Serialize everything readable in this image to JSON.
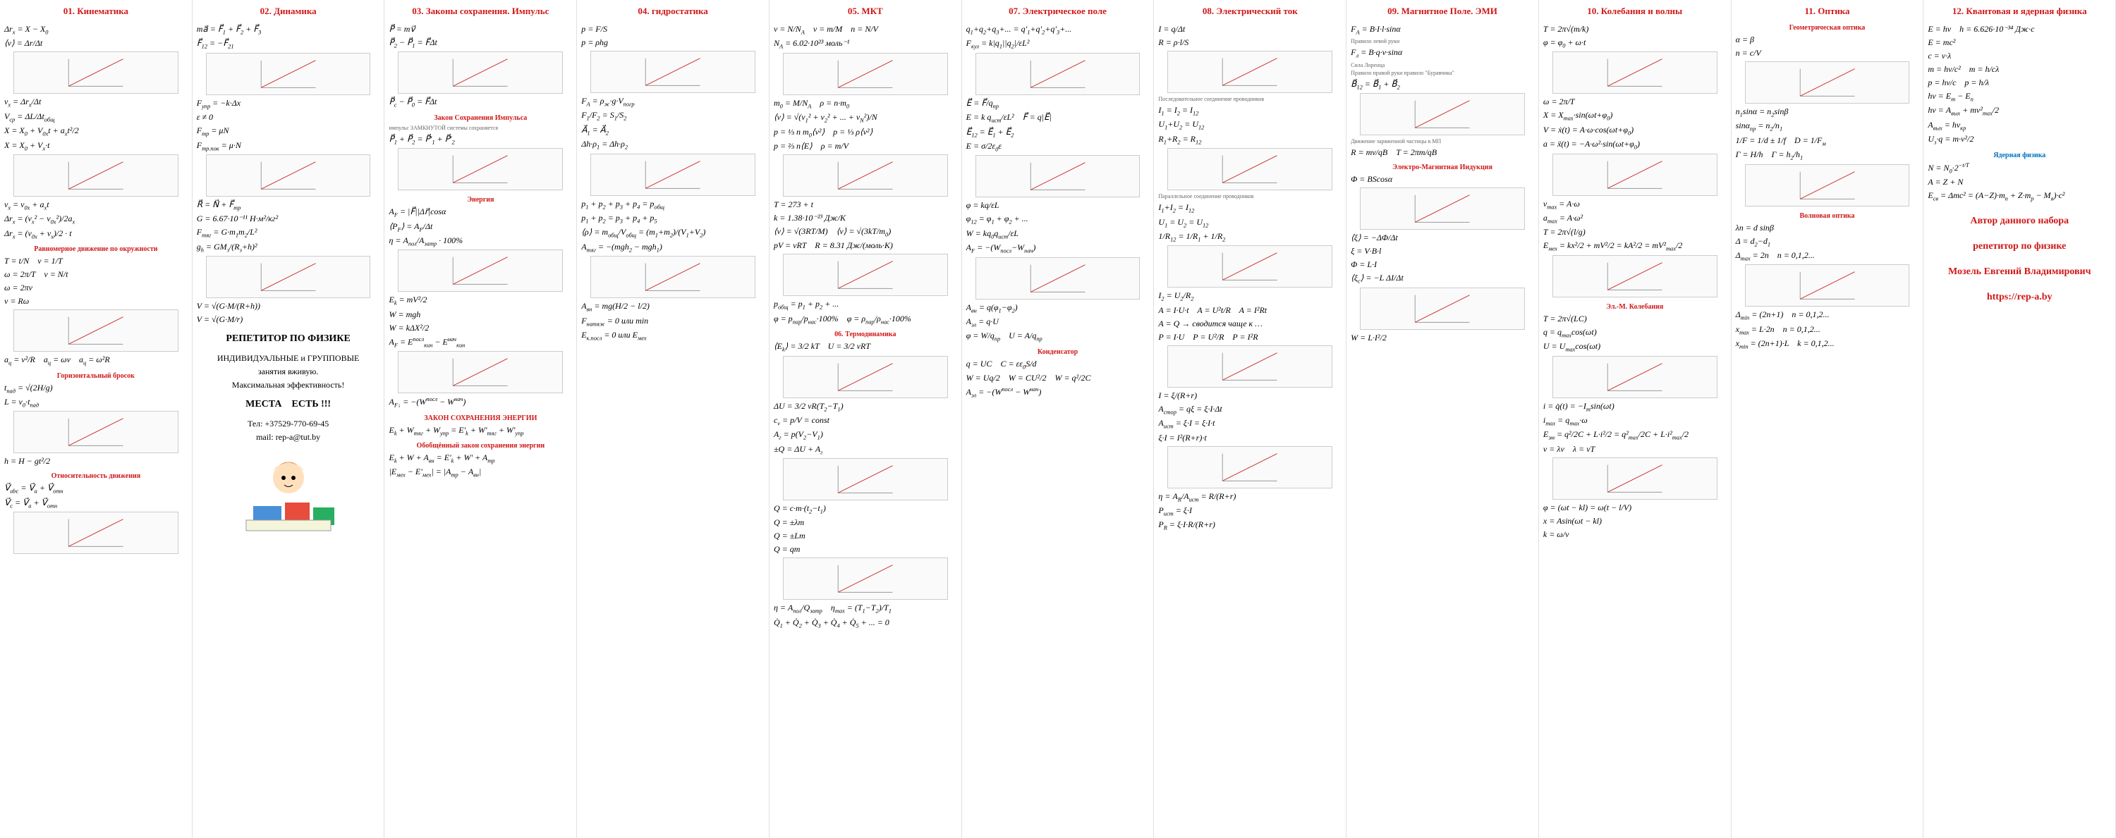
{
  "columns": [
    {
      "header": "01. Кинематика",
      "items": [
        {
          "f": "Δr<sub>x</sub> = X − X<sub>0</sub>"
        },
        {
          "f": "⟨v⟩ = Δr/Δt"
        },
        {
          "f": "v<sub>x</sub> = Δr<sub>x</sub>/Δt"
        },
        {
          "f": "V<sub>ср</sub> = ΔL/Δt<sub>общ</sub>"
        },
        {
          "f": "X = X<sub>0</sub> + V<sub>0x</sub>t + a<sub>x</sub>t²/2"
        },
        {
          "f": "X = X<sub>0</sub> + V<sub>x</sub>·t"
        },
        {
          "f": "v<sub>x</sub> = v<sub>0x</sub> + a<sub>x</sub>t"
        },
        {
          "f": "Δr<sub>x</sub> = (v<sub>x</sub>² − v<sub>0x</sub>²)/2a<sub>x</sub>"
        },
        {
          "f": "Δr<sub>x</sub> = (v<sub>0x</sub> + v<sub>x</sub>)/2 · t"
        },
        {
          "sub": "Равномерное движение по окружности"
        },
        {
          "f": "T = t/N &nbsp;&nbsp; ν = 1/T"
        },
        {
          "f": "ω = 2π/T &nbsp;&nbsp; ν = N/t"
        },
        {
          "f": "ω = 2πν"
        },
        {
          "f": "v = Rω"
        },
        {
          "f": "a<sub>ц</sub> = v²/R &nbsp;&nbsp; a<sub>ц</sub> = ωv &nbsp;&nbsp; a<sub>ц</sub> = ω²R"
        },
        {
          "sub": "Горизонтальный бросок"
        },
        {
          "f": "t<sub>пад</sub> = √(2H/g)"
        },
        {
          "f": "L = v<sub>0</sub>·t<sub>пад</sub>"
        },
        {
          "f": "h = H − gt²/2"
        },
        {
          "sub": "Относительность движения"
        },
        {
          "f": "V⃗<sub>abc</sub> = V⃗<sub>a</sub> + V⃗<sub>отн</sub>"
        },
        {
          "f": "V⃗<sub>c</sub> = V⃗<sub>a</sub> + V⃗<sub>отн</sub>"
        }
      ]
    },
    {
      "header": "02. Динамика",
      "items": [
        {
          "f": "ma⃗ = F⃗<sub>1</sub> + F⃗<sub>2</sub> + F⃗<sub>3</sub>"
        },
        {
          "f": "F⃗<sub>12</sub> = −F⃗<sub>21</sub>"
        },
        {
          "f": "F<sub>упр</sub> = −k·Δx"
        },
        {
          "f": "ε ≠ 0"
        },
        {
          "f": "F<sub>тр</sub> = μN"
        },
        {
          "f": "F<sub>тр.пок</sub> = μ·N"
        },
        {
          "f": "R⃗ = N⃗ + F⃗<sub>тр</sub>"
        },
        {
          "f": "G = 6.67·10⁻¹¹ Н·м²/кг²"
        },
        {
          "f": "F<sub>тяг</sub> = G·m<sub>1</sub>m<sub>2</sub>/L²"
        },
        {
          "f": "g<sub>h</sub> = GM<sub>з</sub>/(R<sub>з</sub>+h)²"
        },
        {
          "f": "V = √(G·M/(R+h))"
        },
        {
          "f": "V = √(G·M/r)"
        },
        {
          "promo": "РЕПЕТИТОР ПО ФИЗИКЕ"
        },
        {
          "promo_sub": "ИНДИВИДУАЛЬНЫЕ и ГРУППОВЫЕ"
        },
        {
          "promo_sub": "занятия вживую."
        },
        {
          "promo_sub": "Максимальная эффективность!"
        },
        {
          "promo": "МЕСТА &nbsp;&nbsp; ЕСТЬ !!!"
        },
        {
          "promo_sub": "Тел: +37529-770-69-45"
        },
        {
          "promo_sub": "mail: rep-a@tut.by"
        }
      ]
    },
    {
      "header": "03. Законы сохранения. Импульс",
      "items": [
        {
          "f": "P⃗ = mv⃗"
        },
        {
          "f": "P⃗<sub>2</sub> − P⃗<sub>1</sub> = F⃗Δt"
        },
        {
          "f": "P⃗<sub>c</sub> − P⃗<sub>0</sub> = F⃗Δt"
        },
        {
          "sub": "Закон Сохранения Импульса"
        },
        {
          "note": "импульс ЗАМКНУТОЙ системы сохраняется"
        },
        {
          "f": "P⃗<sub>1</sub> + P⃗<sub>2</sub> = P⃗'<sub>1</sub> + P⃗'<sub>2</sub>"
        },
        {
          "sub": "Энергия"
        },
        {
          "f": "A<sub>F</sub> = |F⃗||Δr⃗|cosα"
        },
        {
          "f": "⟨P<sub>F</sub>⟩ = A<sub>F</sub>/Δt"
        },
        {
          "f": "η = A<sub>пол</sub>/A<sub>затр</sub> · 100%"
        },
        {
          "f": "E<sub>k</sub> = mV²/2"
        },
        {
          "f": "W = mgh"
        },
        {
          "f": "W = kΔX²/2"
        },
        {
          "f": "A<sub>F</sub> = E<sup>посл</sup><sub>кин</sub> − E<sup>нач</sup><sub>кин</sub>"
        },
        {
          "f": "A<sub>F↓</sub> = −(W<sup>посл</sup> − W<sup>нач</sup>)"
        },
        {
          "sub": "ЗАКОН СОХРАНЕНИЯ ЭНЕРГИИ"
        },
        {
          "f": "E<sub>k</sub> + W<sub>тяг</sub> + W<sub>упр</sub> = E'<sub>k</sub> + W'<sub>тяг</sub> + W'<sub>упр</sub>"
        },
        {
          "sub": "Обобщённый закон сохранения энергии"
        },
        {
          "f": "E<sub>k</sub> + W + A<sub>вн</sub> = E'<sub>k</sub> + W' + A<sub>тр</sub>"
        },
        {
          "f": "|E<sub>мех</sub> − E'<sub>мех</sub>| = |A<sub>тр</sub> − A<sub>вн</sub>|"
        }
      ]
    },
    {
      "header": "04. гидростатика",
      "items": [
        {
          "f": "p = F/S"
        },
        {
          "f": "p = ρhg"
        },
        {
          "f": "F<sub>A</sub> = ρ<sub>ж</sub>·g·V<sub>погр</sub>"
        },
        {
          "f": "F<sub>1</sub>/F<sub>2</sub> = S<sub>1</sub>/S<sub>2</sub>"
        },
        {
          "f": "A⃗<sub>1</sub> = A⃗<sub>2</sub>"
        },
        {
          "f": "Δh·ρ<sub>1</sub> = Δh·ρ<sub>2</sub>"
        },
        {
          "f": "p<sub>1</sub> + p<sub>2</sub> + p<sub>3</sub> + p<sub>4</sub> = p<sub>общ</sub>"
        },
        {
          "f": "p<sub>1</sub> + p<sub>2</sub> = p<sub>3</sub> + p<sub>4</sub> + p<sub>5</sub>"
        },
        {
          "f": "⟨ρ⟩ = m<sub>общ</sub>/V<sub>общ</sub> = (m<sub>1</sub>+m<sub>2</sub>)/(V<sub>1</sub>+V<sub>2</sub>)"
        },
        {
          "f": "A<sub>тяг</sub> = −(mgh<sub>2</sub> − mgh<sub>1</sub>)"
        },
        {
          "f": "A<sub>вн</sub> = mg(H/2 − l/2)"
        },
        {
          "f": "F<sub>натяж</sub> = 0 или min"
        },
        {
          "f": "E<sub>к.посл</sub> = 0 или E<sub>мех</sub>"
        }
      ]
    },
    {
      "header": "05. МКТ",
      "items": [
        {
          "f": "ν = N/N<sub>A</sub> &nbsp;&nbsp; ν = m/M &nbsp;&nbsp; n = N/V"
        },
        {
          "f": "N<sub>A</sub> = 6.02·10²³ моль⁻¹"
        },
        {
          "f": "m<sub>0</sub> = M/N<sub>A</sub> &nbsp;&nbsp; ρ = n·m<sub>0</sub>"
        },
        {
          "f": "⟨v⟩ = √(v<sub>1</sub>² + v<sub>2</sub>² + ... + v<sub>N</sub>²)/N"
        },
        {
          "f": "p = ⅓ n m<sub>0</sub>⟨v²⟩ &nbsp;&nbsp; p = ⅓ ρ⟨v²⟩"
        },
        {
          "f": "p = ⅔ n⟨E⟩ &nbsp;&nbsp; ρ = m/V"
        },
        {
          "f": "T = 273 + t"
        },
        {
          "f": "k = 1.38·10⁻²³ Дж/К"
        },
        {
          "f": "⟨v⟩ = √(3RT/M) &nbsp;&nbsp; ⟨v⟩ = √(3kT/m<sub>0</sub>)"
        },
        {
          "f": "pV = νRT &nbsp;&nbsp; R = 8.31 Дж/(моль·К)"
        },
        {
          "f": "p<sub>общ</sub> = p<sub>1</sub> + p<sub>2</sub> + ..."
        },
        {
          "f": "φ = p<sub>пар</sub>/p<sub>нас</sub>·100% &nbsp;&nbsp; φ = ρ<sub>пар</sub>/ρ<sub>нас</sub>·100%"
        },
        {
          "sub": "06. Термодинамика"
        },
        {
          "f": "⟨E<sub>k</sub>⟩ = 3/2 kT &nbsp;&nbsp; U = 3/2 νRT"
        },
        {
          "f": "ΔU = 3/2 νR(T<sub>2</sub>−T<sub>1</sub>)"
        },
        {
          "f": "c<sub>v</sub> = p/V = const"
        },
        {
          "f": "A<sub>г</sub> = p(V<sub>2</sub>−V<sub>1</sub>)"
        },
        {
          "f": "±Q = ΔU + A<sub>г</sub>"
        },
        {
          "f": "Q = c·m·(t<sub>2</sub>−t<sub>1</sub>)"
        },
        {
          "f": "Q = ±λm"
        },
        {
          "f": "Q = ±Lm"
        },
        {
          "f": "Q = qm"
        },
        {
          "f": "η = A<sub>пол</sub>/Q<sub>затр</sub> &nbsp;&nbsp; η<sub>max</sub> = (T<sub>1</sub>−T<sub>2</sub>)/T<sub>1</sub>"
        },
        {
          "f": "Q̇<sub>1</sub> + Q̇<sub>2</sub> + Q̇<sub>3</sub> + Q̇<sub>4</sub> + Q̇<sub>5</sub> + ... = 0"
        }
      ]
    },
    {
      "header": "07. Электрическое поле",
      "items": [
        {
          "f": "q<sub>1</sub>+q<sub>2</sub>+q<sub>3</sub>+... = q'<sub>1</sub>+q'<sub>2</sub>+q'<sub>3</sub>+..."
        },
        {
          "f": "F<sub>кул</sub> = k|q<sub>1</sub>||q<sub>2</sub>|/εL²"
        },
        {
          "f": "E⃗ = F⃗/q<sub>пр</sub>"
        },
        {
          "f": "E = k q<sub>ист</sub>/εL² &nbsp;&nbsp; F⃗ = q|E⃗|"
        },
        {
          "f": "E⃗<sub>12</sub> = E⃗<sub>1</sub> + E⃗<sub>2</sub>"
        },
        {
          "f": "E = σ/2ε<sub>0</sub>ε"
        },
        {
          "f": "φ = kq/εL"
        },
        {
          "f": "φ<sub>12</sub> = φ<sub>1</sub> + φ<sub>2</sub> + ..."
        },
        {
          "f": "W = kq<sub>0</sub>q<sub>ист</sub>/εL"
        },
        {
          "f": "A<sub>F</sub> = −(W<sub>посл</sub>−W<sub>нач</sub>)"
        },
        {
          "f": "A<sub>вн</sub> = q(φ<sub>1</sub>−φ<sub>2</sub>)"
        },
        {
          "f": "A<sub>эл</sub> = q·U"
        },
        {
          "f": "φ = W/q<sub>пр</sub> &nbsp;&nbsp; U = A/q<sub>пр</sub>"
        },
        {
          "sub": "Конденсатор"
        },
        {
          "f": "q = UC &nbsp;&nbsp; C = εε<sub>0</sub>S/d"
        },
        {
          "f": "W = Uq/2 &nbsp;&nbsp; W = CU²/2 &nbsp;&nbsp; W = q²/2C"
        },
        {
          "f": "A<sub>эл</sub> = −(W<sup>посл</sup> − W<sup>нач</sup>)"
        }
      ]
    },
    {
      "header": "08. Электрический ток",
      "items": [
        {
          "f": "I = q/Δt"
        },
        {
          "f": "R = ρ·l/S"
        },
        {
          "note": "Последовательное соединение проводников"
        },
        {
          "f": "I<sub>1</sub> = I<sub>2</sub> = I<sub>12</sub>"
        },
        {
          "f": "U<sub>1</sub>+U<sub>2</sub> = U<sub>12</sub>"
        },
        {
          "f": "R<sub>1</sub>+R<sub>2</sub> = R<sub>12</sub>"
        },
        {
          "note": "Параллельное соединение проводников"
        },
        {
          "f": "I<sub>1</sub>+I<sub>2</sub> = I<sub>12</sub>"
        },
        {
          "f": "U<sub>1</sub> = U<sub>2</sub> = U<sub>12</sub>"
        },
        {
          "f": "1/R<sub>12</sub> = 1/R<sub>1</sub> + 1/R<sub>2</sub>"
        },
        {
          "f": "I<sub>2</sub> = U<sub>2</sub>/R<sub>2</sub>"
        },
        {
          "f": "A = I·U·t &nbsp;&nbsp; A = U²t/R &nbsp;&nbsp; A = I²Rt"
        },
        {
          "f": "A = Q → сводится чаще к …"
        },
        {
          "f": "P = I·U &nbsp;&nbsp; P = U²/R &nbsp;&nbsp; P = I²R"
        },
        {
          "f": "I = ξ/(R+r)"
        },
        {
          "f": "A<sub>стор</sub> = qξ = ξ·I·Δt"
        },
        {
          "f": "A<sub>ист</sub> = ξ·I = ξ·I·t"
        },
        {
          "f": "ξ·I = I²(R+r)·t"
        },
        {
          "f": "η = A<sub>R</sub>/A<sub>ист</sub> = R/(R+r)"
        },
        {
          "f": "P<sub>ист</sub> = ξ·I"
        },
        {
          "f": "P<sub>R</sub> = ξ·I·R/(R+r)"
        }
      ]
    },
    {
      "header": "09. Магнитное Поле. ЭМИ",
      "items": [
        {
          "f": "F<sub>A</sub> = B·I·l·sinα"
        },
        {
          "note": "Правило левой руки"
        },
        {
          "f": "F<sub>л</sub> = B·q·v·sinα"
        },
        {
          "note": "Сила Лоренца"
        },
        {
          "note": "Правило правой руки правило \"Буравчика\""
        },
        {
          "f": "B⃗<sub>12</sub> = B⃗<sub>1</sub> + B⃗<sub>2</sub>"
        },
        {
          "note": "Движение заряженной частицы в МП"
        },
        {
          "f": "R = mv/qB &nbsp;&nbsp; T = 2πm/qB"
        },
        {
          "sub": "Электро-Магнитная Индукция"
        },
        {
          "f": "Φ = BScosα"
        },
        {
          "f": "⟨ξ⟩ = −ΔΦ/Δt"
        },
        {
          "f": "ξ = V·B·l"
        },
        {
          "f": "Φ = L·I"
        },
        {
          "f": "⟨ξ<sub>с</sub>⟩ = −L ΔI/Δt"
        },
        {
          "f": "W = L·I²/2"
        }
      ]
    },
    {
      "header": "10. Колебания и волны",
      "items": [
        {
          "f": "T = 2π√(m/k)"
        },
        {
          "f": "φ = φ<sub>0</sub> + ω·t"
        },
        {
          "f": "ω = 2π/T"
        },
        {
          "f": "X = X<sub>max</sub>·sin(ωt+φ<sub>0</sub>)"
        },
        {
          "f": "V = ẋ(t) = A·ω·cos(ωt+φ<sub>0</sub>)"
        },
        {
          "f": "a = ẍ(t) = −A·ω²·sin(ωt+φ<sub>0</sub>)"
        },
        {
          "f": "v<sub>max</sub> = A·ω"
        },
        {
          "f": "a<sub>max</sub> = A·ω²"
        },
        {
          "f": "T = 2π√(l/g)"
        },
        {
          "f": "E<sub>мех</sub> = kx²/2 + mV²/2 = kA²/2 = mV²<sub>max</sub>/2"
        },
        {
          "sub": "Эл.-М. Колебания"
        },
        {
          "f": "T = 2π√(LC)"
        },
        {
          "f": "q = q<sub>max</sub>cos(ωt)"
        },
        {
          "f": "U = U<sub>max</sub>cos(ωt)"
        },
        {
          "f": "i = q̇(t) = −I<sub>m</sub>sin(ωt)"
        },
        {
          "f": "i<sub>max</sub> = q<sub>max</sub>·ω"
        },
        {
          "f": "E<sub>эм</sub> = q²/2C + L·i²/2 = q²<sub>max</sub>/2C + L·i²<sub>max</sub>/2"
        },
        {
          "f": "v = λν &nbsp;&nbsp; λ = vT"
        },
        {
          "f": "φ = (ωt − kl) = ω(t − l/V)"
        },
        {
          "f": "x = Asin(ωt − kl)"
        },
        {
          "f": "k = ω/v"
        }
      ]
    },
    {
      "header": "11. Оптика",
      "sub2": "Геометрическая оптика",
      "items": [
        {
          "f": "α = β"
        },
        {
          "f": "n = c/V"
        },
        {
          "f": "n<sub>1</sub>sinα = n<sub>2</sub>sinβ"
        },
        {
          "f": "sinα<sub>пр</sub> = n<sub>2</sub>/n<sub>1</sub>"
        },
        {
          "f": "1/F = 1/d ± 1/f &nbsp;&nbsp; D = 1/F<sub>м</sub>"
        },
        {
          "f": "Г = H/h &nbsp;&nbsp; Г = h<sub>2</sub>/h<sub>1</sub>"
        },
        {
          "sub": "Волновая оптика"
        },
        {
          "f": "λn = d sinβ"
        },
        {
          "f": "Δ = d<sub>2</sub>−d<sub>1</sub>"
        },
        {
          "f": "Δ<sub>max</sub> = 2n &nbsp;&nbsp; n = 0,1,2..."
        },
        {
          "f": "Δ<sub>min</sub> = (2n+1) &nbsp;&nbsp; n = 0,1,2..."
        },
        {
          "f": "x<sub>max</sub> = L·2n &nbsp;&nbsp; n = 0,1,2..."
        },
        {
          "f": "x<sub>min</sub> = (2n+1)·L &nbsp;&nbsp; k = 0,1,2..."
        }
      ]
    },
    {
      "header": "12. Квантовая и ядерная физика",
      "items": [
        {
          "f": "E = hν &nbsp;&nbsp; h = 6.626·10⁻³⁴ Дж·с"
        },
        {
          "f": "E = mc²"
        },
        {
          "f": "c = ν·λ"
        },
        {
          "f": "m = hν/c² &nbsp;&nbsp; m = h/cλ"
        },
        {
          "f": "p = hν/c &nbsp;&nbsp; p = h/λ"
        },
        {
          "f": "hν = E<sub>m</sub> − E<sub>n</sub>"
        },
        {
          "f": "hν = A<sub>вых</sub> + mv²<sub>max</sub>/2"
        },
        {
          "f": "A<sub>вых</sub> = hν<sub>кр</sub>"
        },
        {
          "f": "U<sub>з</sub>·q = m·v²/2"
        },
        {
          "subblue": "Ядерная физика"
        },
        {
          "f": "N = N<sub>0</sub>·2<sup>−t/T</sup>"
        },
        {
          "f": "A = Z + N"
        },
        {
          "f": "E<sub>св</sub> = Δmc² = (A−Z)·m<sub>n</sub> + Z·m<sub>p</sub> − M<sub>я</sub>)·c²"
        },
        {
          "author": "Автор данного набора"
        },
        {
          "author": "репетитор по физике"
        },
        {
          "author": "Мозель Евгений Владимирович"
        },
        {
          "author": "https://rep-a.by"
        }
      ]
    }
  ],
  "colors": {
    "header_red": "#d01818",
    "header_blue": "#0070c0",
    "border": "#e0e0e0",
    "bg": "#ffffff"
  }
}
